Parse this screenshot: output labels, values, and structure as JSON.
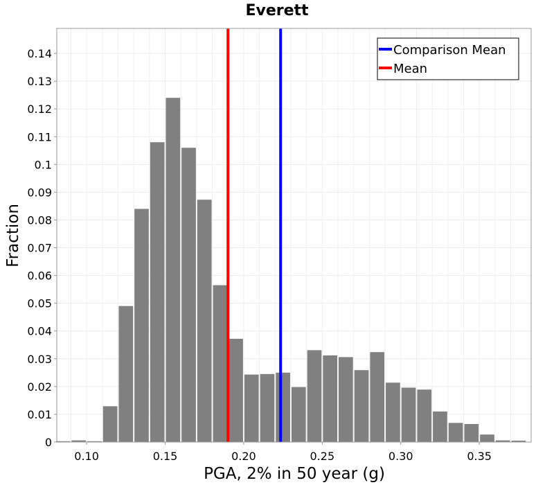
{
  "chart_data": {
    "type": "bar",
    "title": "Everett",
    "xlabel": "PGA, 2% in 50 year (g)",
    "ylabel": "Fraction",
    "xlim": [
      0.081,
      0.383
    ],
    "ylim": [
      0,
      0.149
    ],
    "bin_width": 0.01,
    "bin_centers": [
      0.085,
      0.095,
      0.105,
      0.115,
      0.125,
      0.135,
      0.145,
      0.155,
      0.165,
      0.175,
      0.185,
      0.195,
      0.205,
      0.215,
      0.225,
      0.235,
      0.245,
      0.255,
      0.265,
      0.275,
      0.285,
      0.295,
      0.305,
      0.315,
      0.325,
      0.335,
      0.345,
      0.355,
      0.365,
      0.375
    ],
    "values": [
      0.0003,
      0.0006,
      0.0003,
      0.0129,
      0.049,
      0.084,
      0.108,
      0.124,
      0.106,
      0.0873,
      0.0565,
      0.0372,
      0.0243,
      0.0245,
      0.025,
      0.0198,
      0.0331,
      0.0312,
      0.0306,
      0.0259,
      0.0324,
      0.0214,
      0.0196,
      0.0189,
      0.011,
      0.0069,
      0.0065,
      0.0027,
      0.0006,
      0.0005
    ],
    "bar_color": "#808080",
    "x_ticks": [
      0.1,
      0.15,
      0.2,
      0.25,
      0.3,
      0.35
    ],
    "x_tick_labels": [
      "0.10",
      "0.15",
      "0.20",
      "0.25",
      "0.30",
      "0.35"
    ],
    "y_ticks": [
      0,
      0.01,
      0.02,
      0.03,
      0.04,
      0.05,
      0.06,
      0.07,
      0.08,
      0.09,
      0.1,
      0.11,
      0.12,
      0.13,
      0.14
    ],
    "y_tick_labels": [
      "0",
      "0.01",
      "0.02",
      "0.03",
      "0.04",
      "0.05",
      "0.06",
      "0.07",
      "0.08",
      "0.09",
      "0.1",
      "0.11",
      "0.12",
      "0.13",
      "0.14"
    ],
    "vertical_lines": [
      {
        "name": "Comparison Mean",
        "x": 0.2235,
        "color": "#0000ff"
      },
      {
        "name": "Mean",
        "x": 0.19,
        "color": "#ff0000"
      }
    ],
    "legend": {
      "placement": "top-right",
      "entries": [
        {
          "label": "Comparison Mean",
          "color": "#0000ff"
        },
        {
          "label": "Mean",
          "color": "#ff0000"
        }
      ]
    },
    "grid": true
  }
}
